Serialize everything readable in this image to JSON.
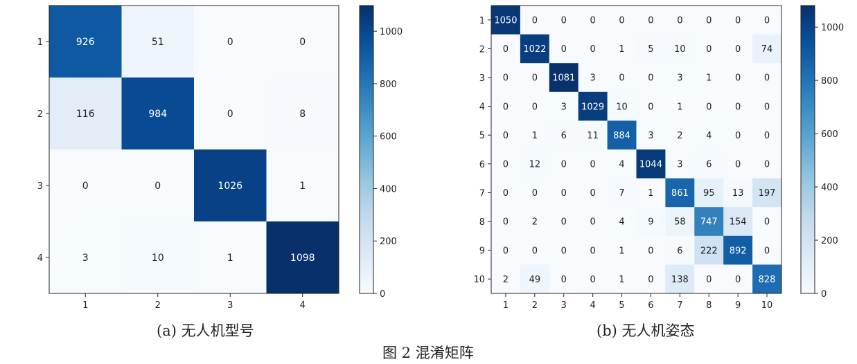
{
  "chart_data": [
    {
      "type": "heatmap",
      "title": "(a) 无人机型号",
      "categories": [
        "1",
        "2",
        "3",
        "4"
      ],
      "matrix": [
        [
          926,
          51,
          0,
          0
        ],
        [
          116,
          984,
          0,
          8
        ],
        [
          0,
          0,
          1026,
          1
        ],
        [
          3,
          10,
          1,
          1098
        ]
      ],
      "colorbar": {
        "range": [
          0,
          1098
        ],
        "ticks": [
          0,
          200,
          400,
          600,
          800,
          1000
        ]
      }
    },
    {
      "type": "heatmap",
      "title": "(b) 无人机姿态",
      "categories": [
        "1",
        "2",
        "3",
        "4",
        "5",
        "6",
        "7",
        "8",
        "9",
        "10"
      ],
      "matrix": [
        [
          1050,
          0,
          0,
          0,
          0,
          0,
          0,
          0,
          0,
          0
        ],
        [
          0,
          1022,
          0,
          0,
          1,
          5,
          10,
          0,
          0,
          74
        ],
        [
          0,
          0,
          1081,
          3,
          0,
          0,
          3,
          1,
          0,
          0
        ],
        [
          0,
          0,
          3,
          1029,
          10,
          0,
          1,
          0,
          0,
          0
        ],
        [
          0,
          1,
          6,
          11,
          884,
          3,
          2,
          4,
          0,
          0
        ],
        [
          0,
          12,
          0,
          0,
          4,
          1044,
          3,
          6,
          0,
          0
        ],
        [
          0,
          0,
          0,
          0,
          7,
          1,
          861,
          95,
          13,
          197
        ],
        [
          0,
          2,
          0,
          0,
          4,
          9,
          58,
          747,
          154,
          0
        ],
        [
          0,
          0,
          0,
          0,
          1,
          0,
          6,
          222,
          892,
          0
        ],
        [
          2,
          49,
          0,
          0,
          1,
          0,
          138,
          0,
          0,
          828
        ]
      ],
      "colorbar": {
        "range": [
          0,
          1081
        ],
        "ticks": [
          0,
          200,
          400,
          600,
          800,
          1000
        ]
      }
    }
  ],
  "figure_caption": "图 2   混淆矩阵",
  "colormap": [
    "#f7fbff",
    "#deebf7",
    "#c6dbef",
    "#9ecae1",
    "#6baed6",
    "#4292c6",
    "#2171b5",
    "#08519c",
    "#08306b"
  ]
}
